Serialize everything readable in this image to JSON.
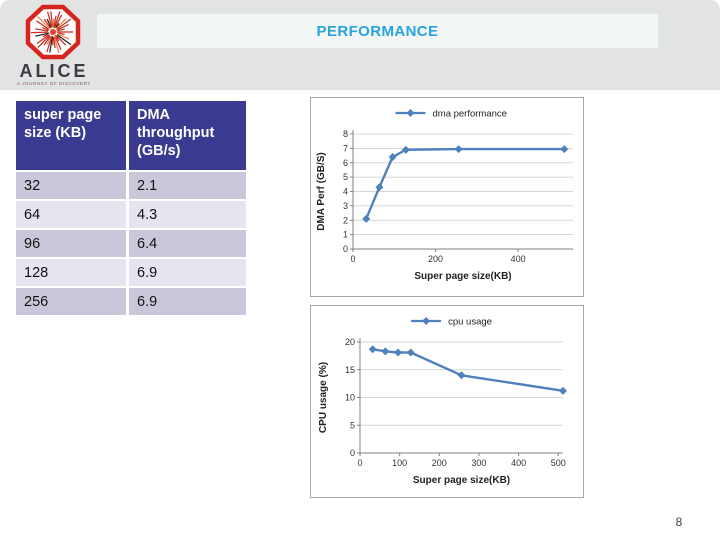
{
  "page": {
    "number": "8"
  },
  "colors": {
    "band": "#E2E4E3",
    "header_bar": "#F2F7F5",
    "header_text": "#29A3DC",
    "table_header_bg": "#3A3A90",
    "table_row_dark": "#C9C8DA",
    "table_row_light": "#E5E4EF",
    "chart_line": "#4F81BD",
    "logo_red": "#D6251F"
  },
  "logo": {
    "name": "ALICE",
    "tagline": "A JOURNEY OF DISCOVERY"
  },
  "header": {
    "title": "PERFORMANCE"
  },
  "table": {
    "columns": [
      "super page size (KB)",
      "DMA throughput (GB/s)"
    ],
    "rows": [
      [
        "32",
        "2.1"
      ],
      [
        "64",
        "4.3"
      ],
      [
        "96",
        "6.4"
      ],
      [
        "128",
        "6.9"
      ],
      [
        "256",
        "6.9"
      ]
    ]
  },
  "chart_data": [
    {
      "type": "line",
      "title": "",
      "legend": [
        "dma performance"
      ],
      "legend_position": "top",
      "xlabel": "Super page size(KB)",
      "ylabel": "DMA Perf (GB/S)",
      "x": [
        32,
        64,
        96,
        128,
        256,
        512
      ],
      "series": [
        {
          "name": "dma performance",
          "values": [
            2.1,
            4.3,
            6.4,
            6.9,
            6.95,
            6.95
          ]
        }
      ],
      "xlim": [
        0,
        533
      ],
      "ylim": [
        0,
        8
      ],
      "xticks": [
        0,
        200,
        400
      ],
      "yticks": [
        0,
        1,
        2,
        3,
        4,
        5,
        6,
        7,
        8
      ],
      "grid": "horizontal",
      "line_color": "#4F81BD",
      "marker": "diamond"
    },
    {
      "type": "line",
      "title": "",
      "legend": [
        "cpu usage"
      ],
      "legend_position": "top",
      "xlabel": "Super page size(KB)",
      "ylabel": "CPU usage (%)",
      "x": [
        32,
        64,
        96,
        128,
        256,
        512
      ],
      "series": [
        {
          "name": "cpu usage",
          "values": [
            18.7,
            18.3,
            18.1,
            18.1,
            14.0,
            11.2
          ]
        }
      ],
      "xlim": [
        0,
        512
      ],
      "ylim": [
        0,
        20
      ],
      "xticks": [
        0,
        100,
        200,
        300,
        400,
        500
      ],
      "yticks": [
        0,
        5,
        10,
        15,
        20
      ],
      "grid": "horizontal",
      "line_color": "#4F81BD",
      "marker": "diamond"
    }
  ]
}
